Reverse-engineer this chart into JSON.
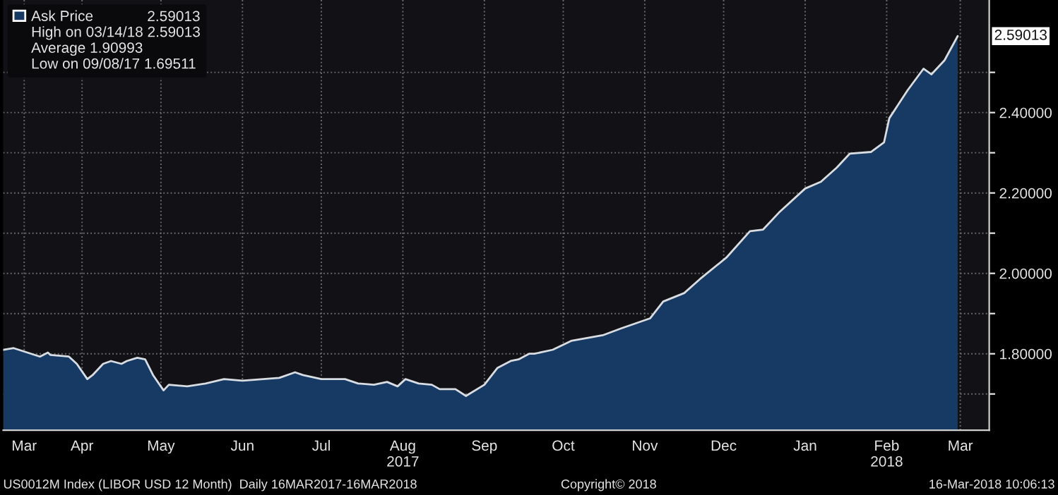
{
  "chart_data": {
    "type": "area",
    "x": [
      "2017-03-16",
      "2017-03-20",
      "2017-03-30",
      "2017-04-02",
      "2017-04-03",
      "2017-04-10",
      "2017-04-13",
      "2017-04-17",
      "2017-04-19",
      "2017-04-23",
      "2017-04-26",
      "2017-04-30",
      "2017-05-02",
      "2017-05-06",
      "2017-05-09",
      "2017-05-12",
      "2017-05-16",
      "2017-05-18",
      "2017-05-25",
      "2017-06-01",
      "2017-06-08",
      "2017-06-15",
      "2017-06-29",
      "2017-07-05",
      "2017-07-08",
      "2017-07-15",
      "2017-07-24",
      "2017-07-29",
      "2017-08-04",
      "2017-08-09",
      "2017-08-13",
      "2017-08-16",
      "2017-08-21",
      "2017-08-26",
      "2017-08-29",
      "2017-09-04",
      "2017-09-08",
      "2017-09-15",
      "2017-09-20",
      "2017-09-25",
      "2017-09-28",
      "2017-10-02",
      "2017-10-04",
      "2017-10-11",
      "2017-10-18",
      "2017-10-30",
      "2017-11-06",
      "2017-11-17",
      "2017-11-22",
      "2017-11-30",
      "2017-12-06",
      "2017-12-16",
      "2017-12-25",
      "2017-12-30",
      "2018-01-05",
      "2018-01-15",
      "2018-01-21",
      "2018-01-27",
      "2018-02-01",
      "2018-02-09",
      "2018-02-14",
      "2018-02-16",
      "2018-02-23",
      "2018-03-01",
      "2018-03-04",
      "2018-03-09",
      "2018-03-14"
    ],
    "series": [
      {
        "name": "Ask Price",
        "color": "#163a63",
        "values": [
          1.81,
          1.814,
          1.793,
          1.803,
          1.797,
          1.793,
          1.775,
          1.737,
          1.747,
          1.775,
          1.782,
          1.775,
          1.782,
          1.79,
          1.786,
          1.747,
          1.709,
          1.723,
          1.719,
          1.726,
          1.737,
          1.733,
          1.74,
          1.754,
          1.747,
          1.737,
          1.737,
          1.726,
          1.723,
          1.73,
          1.719,
          1.737,
          1.726,
          1.723,
          1.712,
          1.712,
          1.69511,
          1.723,
          1.765,
          1.782,
          1.786,
          1.8,
          1.8,
          1.81,
          1.832,
          1.846,
          1.863,
          1.888,
          1.93,
          1.951,
          1.986,
          2.039,
          2.105,
          2.109,
          2.151,
          2.211,
          2.228,
          2.263,
          2.298,
          2.302,
          2.326,
          2.386,
          2.456,
          2.509,
          2.495,
          2.53,
          2.59013
        ]
      }
    ],
    "xlim": [
      "2017-03-16",
      "2018-03-26"
    ],
    "xticks": [
      {
        "value": "2017-03-24",
        "label": "Mar"
      },
      {
        "value": "2017-04-15",
        "label": "Apr"
      },
      {
        "value": "2017-05-15",
        "label": "May"
      },
      {
        "value": "2017-06-15",
        "label": "Jun"
      },
      {
        "value": "2017-07-15",
        "label": "Jul"
      },
      {
        "value": "2017-08-15",
        "label": "Aug\n2017"
      },
      {
        "value": "2017-09-15",
        "label": "Sep"
      },
      {
        "value": "2017-10-15",
        "label": "Oct"
      },
      {
        "value": "2017-11-15",
        "label": "Nov"
      },
      {
        "value": "2017-12-15",
        "label": "Dec"
      },
      {
        "value": "2018-01-15",
        "label": "Jan"
      },
      {
        "value": "2018-02-15",
        "label": "Feb\n2018"
      },
      {
        "value": "2018-03-15",
        "label": "Mar"
      }
    ],
    "ylim": [
      1.61,
      2.68
    ],
    "yticks": [
      {
        "value": 1.7,
        "label": null
      },
      {
        "value": 1.8,
        "label": "1.80000"
      },
      {
        "value": 1.9,
        "label": null
      },
      {
        "value": 2.0,
        "label": "2.00000"
      },
      {
        "value": 2.1,
        "label": null
      },
      {
        "value": 2.2,
        "label": "2.20000"
      },
      {
        "value": 2.3,
        "label": null
      },
      {
        "value": 2.4,
        "label": "2.40000"
      },
      {
        "value": 2.5,
        "label": null
      }
    ],
    "grid": true,
    "legend": "top left",
    "annotations": [
      "2.59013",
      "High on 03/14/18 2.59013",
      "Average 1.90993",
      "Low on 09/08/17 1.69511",
      {
        "text": "2.59013",
        "x": "2018-03-14",
        "y": 2.59013
      },
      "US0012M Index (LIBOR USD 12 Month)  Daily 16MAR2017-16MAR2018",
      "Copyright© 2018",
      "16-Mar-2018 10:06:13"
    ]
  }
}
